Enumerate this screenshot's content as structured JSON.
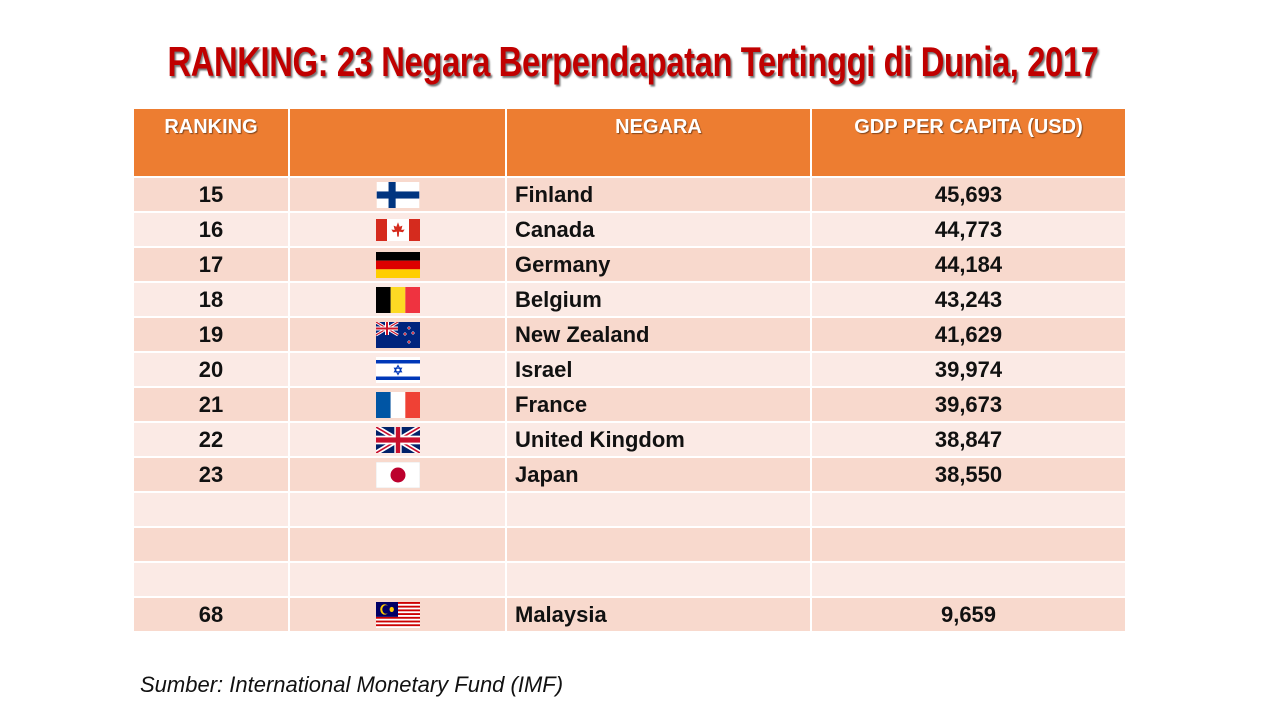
{
  "title": "RANKING: 23 Negara Berpendapatan Tertinggi di Dunia, 2017",
  "table": {
    "headers": {
      "ranking": "RANKING",
      "flag": "",
      "country": "NEGARA",
      "gdp": "GDP PER CAPITA (USD)"
    },
    "rows": [
      {
        "rank": "15",
        "country": "Finland",
        "gdp": "45,693",
        "flag_icon": "finland-flag-icon"
      },
      {
        "rank": "16",
        "country": "Canada",
        "gdp": "44,773",
        "flag_icon": "canada-flag-icon"
      },
      {
        "rank": "17",
        "country": "Germany",
        "gdp": "44,184",
        "flag_icon": "germany-flag-icon"
      },
      {
        "rank": "18",
        "country": "Belgium",
        "gdp": "43,243",
        "flag_icon": "belgium-flag-icon"
      },
      {
        "rank": "19",
        "country": "New Zealand",
        "gdp": "41,629",
        "flag_icon": "new-zealand-flag-icon"
      },
      {
        "rank": "20",
        "country": "Israel",
        "gdp": "39,974",
        "flag_icon": "israel-flag-icon"
      },
      {
        "rank": "21",
        "country": "France",
        "gdp": "39,673",
        "flag_icon": "france-flag-icon"
      },
      {
        "rank": "22",
        "country": "United Kingdom",
        "gdp": "38,847",
        "flag_icon": "united-kingdom-flag-icon"
      },
      {
        "rank": "23",
        "country": "Japan",
        "gdp": "38,550",
        "flag_icon": "japan-flag-icon"
      },
      {
        "rank": "",
        "country": "",
        "gdp": "",
        "flag_icon": ""
      },
      {
        "rank": "",
        "country": "",
        "gdp": "",
        "flag_icon": ""
      },
      {
        "rank": "",
        "country": "",
        "gdp": "",
        "flag_icon": ""
      },
      {
        "rank": "68",
        "country": "Malaysia",
        "gdp": "9,659",
        "flag_icon": "malaysia-flag-icon"
      }
    ]
  },
  "source": "Sumber: International Monetary Fund (IMF)",
  "colors": {
    "title": "#c00000",
    "header_bg": "#ed7d31",
    "row_odd": "#f8d9cd",
    "row_even": "#fbeae5"
  }
}
